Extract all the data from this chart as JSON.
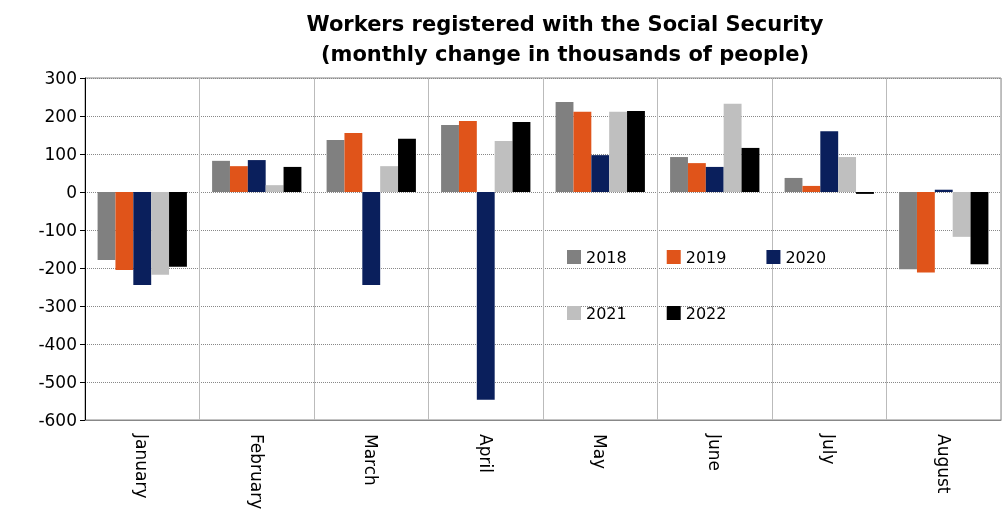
{
  "chart_data": {
    "type": "bar",
    "title": "Workers registered with the Social Security\n(monthly change in thousands of people)",
    "categories": [
      "January",
      "February",
      "March",
      "April",
      "May",
      "June",
      "July",
      "August"
    ],
    "series": [
      {
        "name": "2018",
        "color": "#808080",
        "values": [
          -179,
          82,
          137,
          176,
          237,
          92,
          37,
          -203
        ]
      },
      {
        "name": "2019",
        "color": "#e0541a",
        "values": [
          -205,
          68,
          155,
          187,
          211,
          76,
          16,
          -212
        ]
      },
      {
        "name": "2020",
        "color": "#0a1f5c",
        "values": [
          -245,
          84,
          -245,
          -547,
          97,
          66,
          160,
          6
        ]
      },
      {
        "name": "2021",
        "color": "#bfbfbf",
        "values": [
          -218,
          18,
          68,
          134,
          211,
          232,
          92,
          -118
        ]
      },
      {
        "name": "2022",
        "color": "#000000",
        "values": [
          -197,
          66,
          140,
          184,
          213,
          116,
          -5,
          -190
        ]
      }
    ],
    "ylim": [
      -600,
      300
    ],
    "yticks": [
      -600,
      -500,
      -400,
      -300,
      -200,
      -100,
      0,
      100,
      200,
      300
    ],
    "grid": true,
    "legend": "center"
  }
}
